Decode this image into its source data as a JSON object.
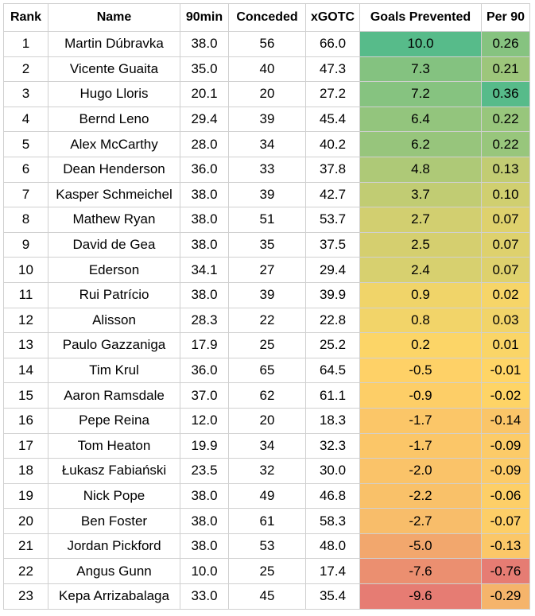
{
  "table": {
    "headers": [
      "Rank",
      "Name",
      "90min",
      "Conceded",
      "xGOTC",
      "Goals Prevented",
      "Per 90"
    ],
    "rows": [
      {
        "rank": "1",
        "name": "Martin Dúbravka",
        "min90": "38.0",
        "conceded": "56",
        "xgotc": "66.0",
        "gp": "10.0",
        "per90": "0.26"
      },
      {
        "rank": "2",
        "name": "Vicente Guaita",
        "min90": "35.0",
        "conceded": "40",
        "xgotc": "47.3",
        "gp": "7.3",
        "per90": "0.21"
      },
      {
        "rank": "3",
        "name": "Hugo Lloris",
        "min90": "20.1",
        "conceded": "20",
        "xgotc": "27.2",
        "gp": "7.2",
        "per90": "0.36"
      },
      {
        "rank": "4",
        "name": "Bernd Leno",
        "min90": "29.4",
        "conceded": "39",
        "xgotc": "45.4",
        "gp": "6.4",
        "per90": "0.22"
      },
      {
        "rank": "5",
        "name": "Alex McCarthy",
        "min90": "28.0",
        "conceded": "34",
        "xgotc": "40.2",
        "gp": "6.2",
        "per90": "0.22"
      },
      {
        "rank": "6",
        "name": "Dean Henderson",
        "min90": "36.0",
        "conceded": "33",
        "xgotc": "37.8",
        "gp": "4.8",
        "per90": "0.13"
      },
      {
        "rank": "7",
        "name": "Kasper Schmeichel",
        "min90": "38.0",
        "conceded": "39",
        "xgotc": "42.7",
        "gp": "3.7",
        "per90": "0.10"
      },
      {
        "rank": "8",
        "name": "Mathew Ryan",
        "min90": "38.0",
        "conceded": "51",
        "xgotc": "53.7",
        "gp": "2.7",
        "per90": "0.07"
      },
      {
        "rank": "9",
        "name": "David de Gea",
        "min90": "38.0",
        "conceded": "35",
        "xgotc": "37.5",
        "gp": "2.5",
        "per90": "0.07"
      },
      {
        "rank": "10",
        "name": "Ederson",
        "min90": "34.1",
        "conceded": "27",
        "xgotc": "29.4",
        "gp": "2.4",
        "per90": "0.07"
      },
      {
        "rank": "11",
        "name": "Rui Patrício",
        "min90": "38.0",
        "conceded": "39",
        "xgotc": "39.9",
        "gp": "0.9",
        "per90": "0.02"
      },
      {
        "rank": "12",
        "name": "Alisson",
        "min90": "28.3",
        "conceded": "22",
        "xgotc": "22.8",
        "gp": "0.8",
        "per90": "0.03"
      },
      {
        "rank": "13",
        "name": "Paulo Gazzaniga",
        "min90": "17.9",
        "conceded": "25",
        "xgotc": "25.2",
        "gp": "0.2",
        "per90": "0.01"
      },
      {
        "rank": "14",
        "name": "Tim Krul",
        "min90": "36.0",
        "conceded": "65",
        "xgotc": "64.5",
        "gp": "-0.5",
        "per90": "-0.01"
      },
      {
        "rank": "15",
        "name": "Aaron Ramsdale",
        "min90": "37.0",
        "conceded": "62",
        "xgotc": "61.1",
        "gp": "-0.9",
        "per90": "-0.02"
      },
      {
        "rank": "16",
        "name": "Pepe Reina",
        "min90": "12.0",
        "conceded": "20",
        "xgotc": "18.3",
        "gp": "-1.7",
        "per90": "-0.14"
      },
      {
        "rank": "17",
        "name": "Tom Heaton",
        "min90": "19.9",
        "conceded": "34",
        "xgotc": "32.3",
        "gp": "-1.7",
        "per90": "-0.09"
      },
      {
        "rank": "18",
        "name": "Łukasz Fabiański",
        "min90": "23.5",
        "conceded": "32",
        "xgotc": "30.0",
        "gp": "-2.0",
        "per90": "-0.09"
      },
      {
        "rank": "19",
        "name": "Nick Pope",
        "min90": "38.0",
        "conceded": "49",
        "xgotc": "46.8",
        "gp": "-2.2",
        "per90": "-0.06"
      },
      {
        "rank": "20",
        "name": "Ben Foster",
        "min90": "38.0",
        "conceded": "61",
        "xgotc": "58.3",
        "gp": "-2.7",
        "per90": "-0.07"
      },
      {
        "rank": "21",
        "name": "Jordan Pickford",
        "min90": "38.0",
        "conceded": "53",
        "xgotc": "48.0",
        "gp": "-5.0",
        "per90": "-0.13"
      },
      {
        "rank": "22",
        "name": "Angus Gunn",
        "min90": "10.0",
        "conceded": "25",
        "xgotc": "17.4",
        "gp": "-7.6",
        "per90": "-0.76"
      },
      {
        "rank": "23",
        "name": "Kepa Arrizabalaga",
        "min90": "33.0",
        "conceded": "45",
        "xgotc": "35.4",
        "gp": "-9.6",
        "per90": "-0.29"
      }
    ]
  },
  "colors": {
    "scale_high": "#57bb8a",
    "scale_mid": "#ffd666",
    "scale_low": "#e67c73",
    "grid": "#d0d0d0"
  }
}
